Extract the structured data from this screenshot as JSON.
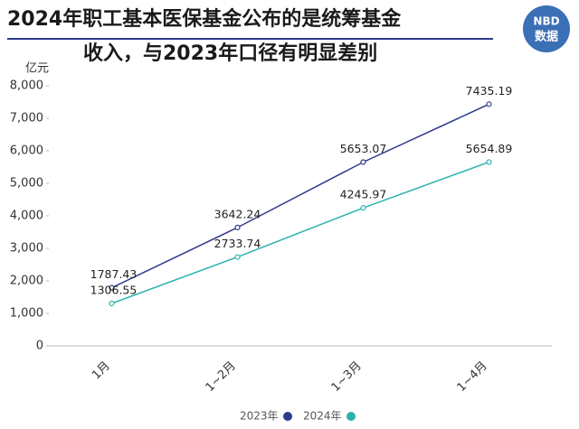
{
  "chart_data": {
    "type": "line",
    "title": [
      "2024年职工基本医保基金公布的是统筹基金",
      "收入，与2023年口径有明显差别"
    ],
    "logo": [
      "NBD",
      "数据"
    ],
    "y_label": "亿元",
    "categories": [
      "1月",
      "1~2月",
      "1~3月",
      "1~4月"
    ],
    "series": [
      {
        "name": "2023年",
        "color": "#2e3a8c",
        "values": [
          1787.43,
          3642.24,
          5653.07,
          7435.19
        ]
      },
      {
        "name": "2024年",
        "color": "#2ab3ad",
        "values": [
          1306.55,
          2733.74,
          4245.97,
          5654.89
        ]
      }
    ],
    "ylim": [
      0,
      8000
    ],
    "yticks": [
      0,
      {
        "value": 1000,
        "label": "1,000"
      },
      {
        "value": 2000,
        "label": "2,000"
      },
      {
        "value": 3000,
        "label": "3,000"
      },
      {
        "value": 4000,
        "label": "4,000"
      },
      {
        "value": 5000,
        "label": "5,000"
      },
      {
        "value": 6000,
        "label": "6,000"
      },
      {
        "value": 7000,
        "label": "7,000"
      },
      {
        "value": 8000,
        "label": "8,000"
      }
    ],
    "legend": "bottom"
  }
}
